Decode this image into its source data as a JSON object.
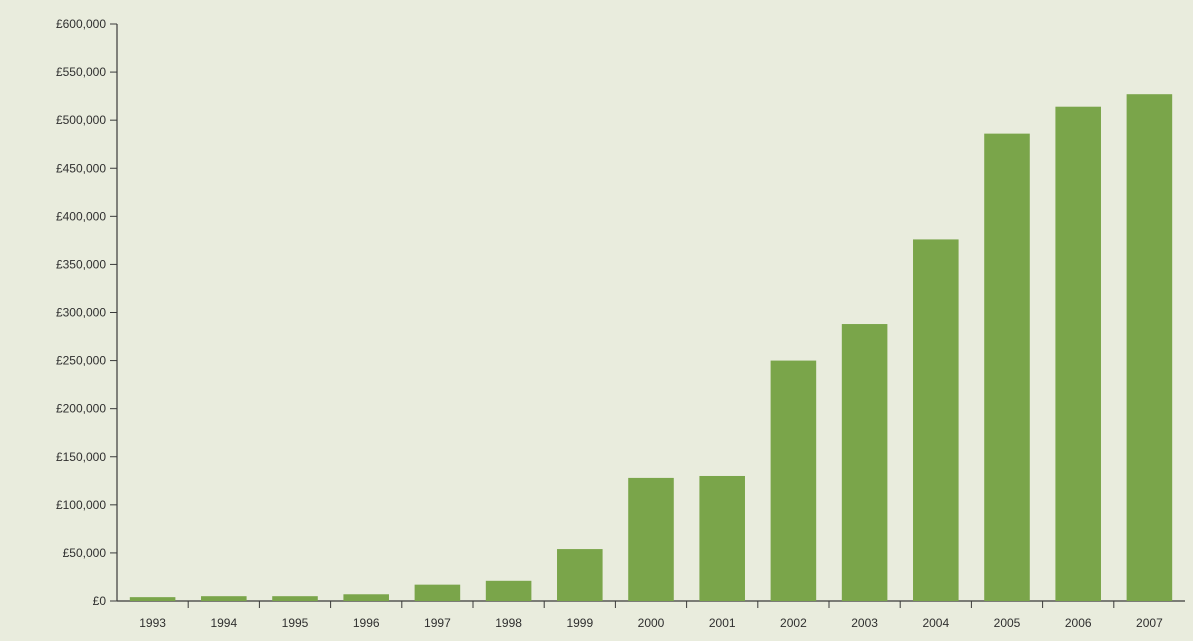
{
  "chart_data": {
    "type": "bar",
    "title": "",
    "xlabel": "",
    "ylabel": "",
    "categories": [
      "1993",
      "1994",
      "1995",
      "1996",
      "1997",
      "1998",
      "1999",
      "2000",
      "2001",
      "2002",
      "2003",
      "2004",
      "2005",
      "2006",
      "2007"
    ],
    "values": [
      4000,
      5000,
      5000,
      7000,
      17000,
      21000,
      54000,
      128000,
      130000,
      250000,
      288000,
      376000,
      486000,
      514000,
      527000
    ],
    "ylim": [
      0,
      600000
    ],
    "yticks": [
      0,
      50000,
      100000,
      150000,
      200000,
      250000,
      300000,
      350000,
      400000,
      450000,
      500000,
      550000,
      600000
    ],
    "ytick_labels": [
      "£0",
      "£50,000",
      "£100,000",
      "£150,000",
      "£200,000",
      "£250,000",
      "£300,000",
      "£350,000",
      "£400,000",
      "£450,000",
      "£500,000",
      "£550,000",
      "£600,000"
    ],
    "grid": false,
    "legend": "none",
    "colors": {
      "bar": "#7aa54a",
      "axis": "#3a3a3a",
      "background": "#e9ecdd"
    }
  }
}
